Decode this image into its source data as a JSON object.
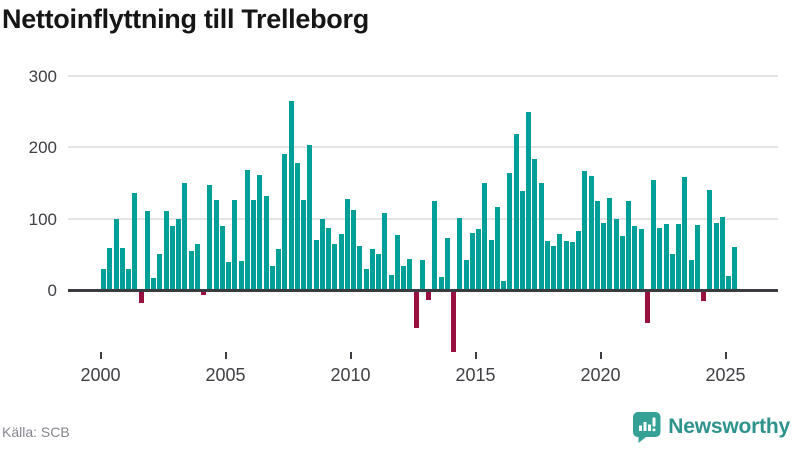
{
  "title": "Nettoinflyttning till Trelleborg",
  "source": "Källa: SCB",
  "branding": {
    "name": "Newsworthy"
  },
  "colors": {
    "bar_positive": "#00a099",
    "bar_negative": "#98103f",
    "title_text": "#161616",
    "axis_text": "#3f3f44",
    "gridline": "#e4e4e4",
    "baseline": "#3b3b40",
    "source_text": "#85858e",
    "brand_teal": "#2e938c"
  },
  "chart_data": {
    "type": "bar",
    "title": "Nettoinflyttning till Trelleborg",
    "frequency": "quarterly",
    "x_start": "2000 Q1",
    "x_end": "2025 Q2",
    "values": [
      29,
      59,
      100,
      59,
      30,
      135,
      -17,
      110,
      17,
      50,
      110,
      89,
      99,
      150,
      54,
      64,
      -5,
      147,
      126,
      90,
      39,
      126,
      40,
      168,
      126,
      161,
      131,
      34,
      57,
      190,
      264,
      178,
      126,
      203,
      70,
      99,
      87,
      65,
      79,
      127,
      112,
      62,
      29,
      57,
      50,
      107,
      21,
      77,
      33,
      43,
      -52,
      42,
      -13,
      125,
      18,
      73,
      -85,
      101,
      42,
      80,
      85,
      150,
      70,
      116,
      13,
      163,
      218,
      138,
      249,
      183,
      150,
      69,
      62,
      79,
      69,
      67,
      83,
      166,
      159,
      125,
      94,
      128,
      99,
      76,
      125,
      90,
      86,
      -45,
      154,
      87,
      92,
      50,
      92,
      158,
      42,
      91,
      -14,
      140,
      94,
      102,
      20,
      60
    ],
    "y_ticks": [
      0,
      100,
      200,
      300
    ],
    "x_ticks": [
      {
        "label": "2000",
        "index": 0
      },
      {
        "label": "2005",
        "index": 20
      },
      {
        "label": "2010",
        "index": 40
      },
      {
        "label": "2015",
        "index": 60
      },
      {
        "label": "2020",
        "index": 80
      },
      {
        "label": "2025",
        "index": 100
      }
    ],
    "ylim": [
      -100,
      310
    ],
    "grid": "horizontal-only",
    "legend": "none",
    "xlabel": "",
    "ylabel": ""
  }
}
